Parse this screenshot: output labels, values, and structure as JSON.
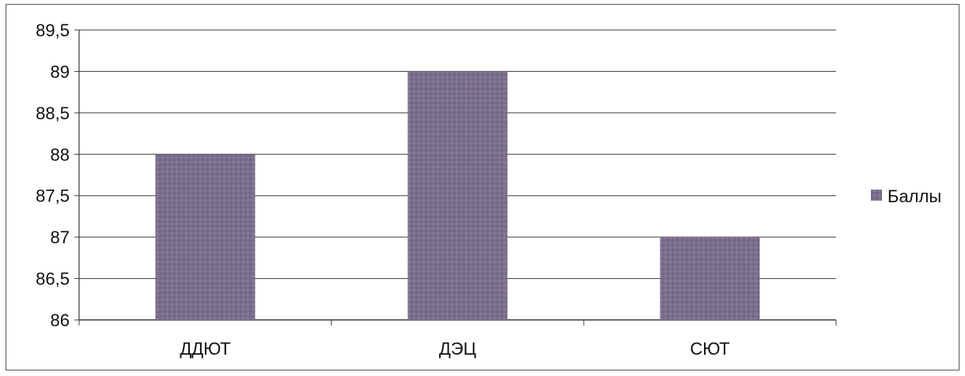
{
  "chart_data": {
    "type": "bar",
    "categories": [
      "ДДЮТ",
      "ДЭЦ",
      "СЮТ"
    ],
    "series": [
      {
        "name": "Баллы",
        "values": [
          88,
          89,
          87
        ]
      }
    ],
    "ylim": [
      86,
      89.5
    ],
    "yticks": [
      "86",
      "86,5",
      "87",
      "87,5",
      "88",
      "88,5",
      "89",
      "89,5"
    ],
    "grid": true,
    "legend": "right",
    "bar_color": "#7a6e8c"
  }
}
